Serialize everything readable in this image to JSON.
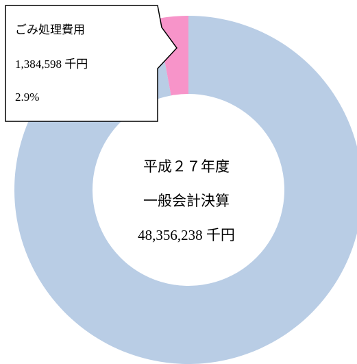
{
  "chart_data": {
    "type": "donut",
    "categories": [
      null,
      "ごみ処理費用"
    ],
    "values": [
      97.1,
      2.9
    ],
    "value_labels": [
      null,
      "2.9%"
    ],
    "amount_labels": [
      null,
      "1,384,598 千円"
    ],
    "colors": [
      "#b9cde5",
      "#f794c9"
    ],
    "center_text": [
      "平成２７年度",
      "一般会計決算",
      "48,356,238 千円"
    ]
  }
}
